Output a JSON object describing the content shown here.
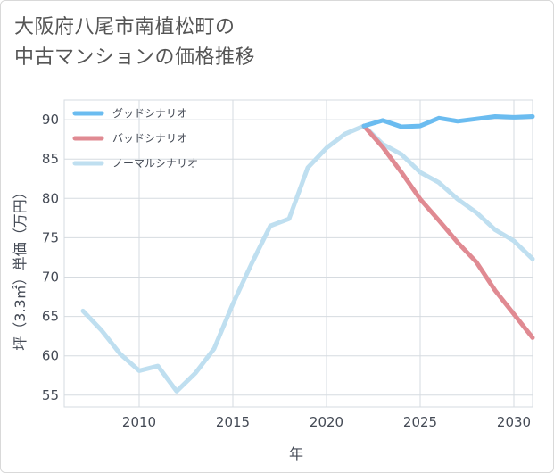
{
  "chart_data": {
    "type": "line",
    "title": "大阪府八尾市南植松町の\n中古マンションの価格推移",
    "xlabel": "年",
    "ylabel": "坪（3.3㎡）単価（万円）",
    "xlim": [
      2006.0,
      2031.0
    ],
    "ylim": [
      53.5,
      92.5
    ],
    "xticks": [
      2010,
      2015,
      2020,
      2025,
      2030
    ],
    "yticks": [
      55,
      60,
      65,
      70,
      75,
      80,
      85,
      90
    ],
    "grid": true,
    "legend_position": "top-left",
    "series": [
      {
        "name": "グッドシナリオ",
        "color": "#6bbcf0",
        "x": [
          2022,
          2023,
          2024,
          2025,
          2026,
          2027,
          2028,
          2029,
          2030,
          2031
        ],
        "y": [
          89.2,
          89.9,
          89.1,
          89.2,
          90.2,
          89.8,
          90.1,
          90.4,
          90.3,
          90.4
        ]
      },
      {
        "name": "バッドシナリオ",
        "color": "#e08a92",
        "x": [
          2022,
          2023,
          2024,
          2025,
          2026,
          2027,
          2028,
          2029,
          2030,
          2031
        ],
        "y": [
          89.2,
          86.5,
          83.3,
          79.9,
          77.2,
          74.4,
          71.9,
          68.3,
          65.3,
          62.3
        ]
      },
      {
        "name": "ノーマルシナリオ",
        "color": "#bfdff0",
        "x": [
          2007,
          2008,
          2009,
          2010,
          2011,
          2012,
          2013,
          2014,
          2015,
          2016,
          2017,
          2018,
          2019,
          2020,
          2021,
          2022,
          2023,
          2024,
          2025,
          2026,
          2027,
          2028,
          2029,
          2030,
          2031
        ],
        "y": [
          65.7,
          63.2,
          60.2,
          58.1,
          58.7,
          55.5,
          57.8,
          60.9,
          66.6,
          71.7,
          76.5,
          77.4,
          83.9,
          86.4,
          88.2,
          89.2,
          86.9,
          85.6,
          83.3,
          82.0,
          79.9,
          78.2,
          76.0,
          74.6,
          72.3
        ]
      }
    ]
  }
}
